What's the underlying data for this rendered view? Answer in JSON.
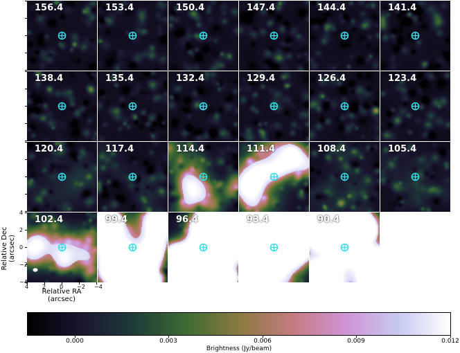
{
  "panels": [
    {
      "label": "156.4",
      "emission": 0.0
    },
    {
      "label": "153.4",
      "emission": 0.0
    },
    {
      "label": "150.4",
      "emission": 0.0
    },
    {
      "label": "147.4",
      "emission": 0.0
    },
    {
      "label": "144.4",
      "emission": 0.0
    },
    {
      "label": "141.4",
      "emission": 0.0
    },
    {
      "label": "138.4",
      "emission": 0.0
    },
    {
      "label": "135.4",
      "emission": 0.0
    },
    {
      "label": "132.4",
      "emission": 0.0
    },
    {
      "label": "129.4",
      "emission": 0.0
    },
    {
      "label": "126.4",
      "emission": 0.0
    },
    {
      "label": "123.4",
      "emission": 0.0
    },
    {
      "label": "120.4",
      "emission": 0.05
    },
    {
      "label": "117.4",
      "emission": 0.05
    },
    {
      "label": "114.4",
      "emission": 0.25
    },
    {
      "label": "111.4",
      "emission": 0.35
    },
    {
      "label": "108.4",
      "emission": 0.05
    },
    {
      "label": "105.4",
      "emission": 0.05
    },
    {
      "label": "102.4",
      "emission": 0.3
    },
    {
      "label": "99.4",
      "emission": 0.8
    },
    {
      "label": "96.4",
      "emission": 0.95
    },
    {
      "label": "93.4",
      "emission": 0.9
    },
    {
      "label": "90.4",
      "emission": 0.85
    }
  ],
  "axes": {
    "ylabel_line1": "Relative Dec",
    "ylabel_line2": "(arcsec)",
    "xlabel_line1": "Relative RA",
    "xlabel_line2": "(arcsec)",
    "y_ticks": [
      "4",
      "2",
      "0",
      "−2",
      "−4"
    ],
    "x_ticks": [
      "4",
      "2",
      "0",
      "−2",
      "−4"
    ]
  },
  "colorbar": {
    "title": "Brightness (Jy/beam)",
    "tick_labels": [
      "0.000",
      "0.003",
      "0.006",
      "0.009",
      "0.012"
    ],
    "range": [
      -0.0015,
      0.012
    ],
    "colormap": "cubehelix",
    "stops": [
      "#000000",
      "#1a1530",
      "#1e3b3a",
      "#3d6b33",
      "#8a7a3f",
      "#c47b80",
      "#cf93d4",
      "#c7c8f2",
      "#ffffff"
    ]
  },
  "marker": {
    "color": "#33e0e6",
    "symbol": "circle-cross-icon"
  }
}
